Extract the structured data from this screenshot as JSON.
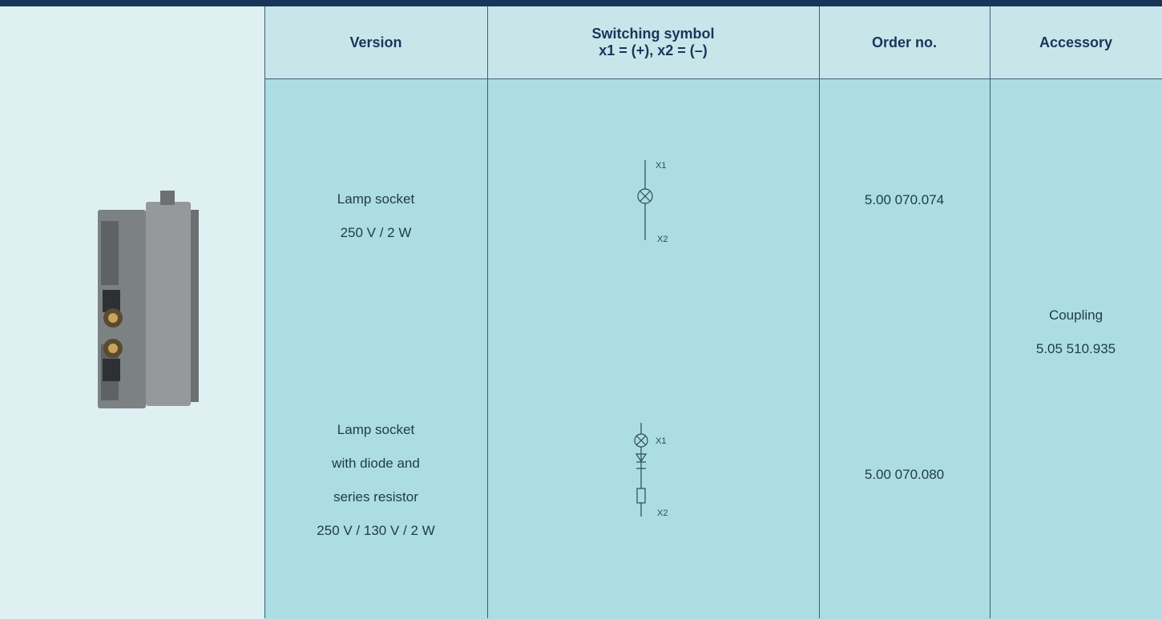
{
  "header": {
    "columns": [
      {
        "title": "Version"
      },
      {
        "title": "Switching symbol",
        "subtitle": "x1 = (+), x2 = (–)"
      },
      {
        "title": "Order no."
      },
      {
        "title": "Accessory"
      }
    ]
  },
  "rows": [
    {
      "version": [
        "Lamp socket",
        "250 V / 2 W"
      ],
      "symbol_labels": [
        "X1",
        "X2"
      ],
      "order_no": "5.00 070.074"
    },
    {
      "version": [
        "Lamp socket",
        "with diode and",
        "series resistor",
        "250 V / 130 V / 2 W"
      ],
      "symbol_labels": [
        "X1",
        "X2"
      ],
      "order_no": "5.00 070.080"
    }
  ],
  "accessory": [
    "Coupling",
    "5.05 510.935"
  ]
}
